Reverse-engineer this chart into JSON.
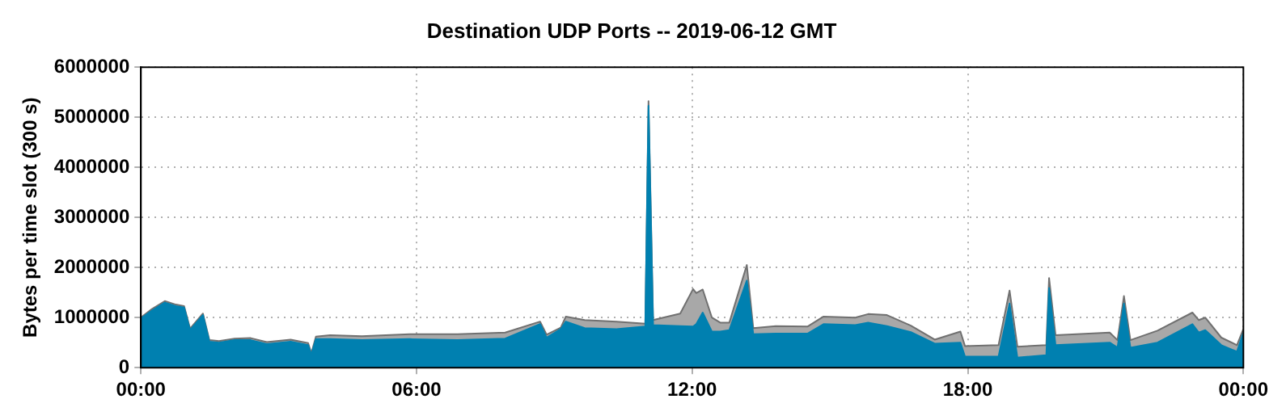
{
  "chart_data": {
    "type": "area",
    "title": "Destination UDP Ports -- 2019-06-12 GMT",
    "ylabel": "Bytes per time slot (300 s)",
    "stacked": true,
    "grid": true,
    "legend": false,
    "x": [
      0,
      0.24,
      0.52,
      0.76,
      0.94,
      1.07,
      1.35,
      1.49,
      1.7,
      2.04,
      2.39,
      2.74,
      3.26,
      3.64,
      3.71,
      3.81,
      4.12,
      4.81,
      5.85,
      6.89,
      7.93,
      8.69,
      8.83,
      9.14,
      9.25,
      9.66,
      10.35,
      10.98,
      11.05,
      11.15,
      11.74,
      12.02,
      12.09,
      12.23,
      12.43,
      12.61,
      12.81,
      13.19,
      13.33,
      13.82,
      14.51,
      14.86,
      15.55,
      15.83,
      16.24,
      16.76,
      17.28,
      17.84,
      17.94,
      18.67,
      18.91,
      19.08,
      19.71,
      19.77,
      19.91,
      21.09,
      21.26,
      21.4,
      21.54,
      22.13,
      22.89,
      23.03,
      23.17,
      23.52,
      23.86,
      24
    ],
    "series": [
      {
        "color": "#0080b0",
        "values": [
          980000,
          1140000,
          1300000,
          1230000,
          1200000,
          750000,
          1050000,
          520000,
          500000,
          550000,
          550000,
          470000,
          520000,
          450000,
          260000,
          570000,
          570000,
          550000,
          570000,
          550000,
          580000,
          870000,
          600000,
          770000,
          920000,
          790000,
          770000,
          820000,
          5230000,
          850000,
          830000,
          820000,
          870000,
          1100000,
          720000,
          720000,
          750000,
          1740000,
          670000,
          680000,
          680000,
          870000,
          850000,
          900000,
          830000,
          710000,
          480000,
          500000,
          220000,
          220000,
          1280000,
          200000,
          250000,
          1590000,
          450000,
          500000,
          400000,
          1280000,
          400000,
          500000,
          870000,
          700000,
          750000,
          450000,
          320000,
          700000
        ]
      },
      {
        "color": "#a8a8a8",
        "values": [
          20000,
          30000,
          30000,
          30000,
          30000,
          30000,
          30000,
          30000,
          30000,
          30000,
          40000,
          40000,
          40000,
          40000,
          30000,
          50000,
          80000,
          80000,
          100000,
          120000,
          120000,
          50000,
          60000,
          30000,
          100000,
          160000,
          150000,
          60000,
          90000,
          100000,
          250000,
          750000,
          620000,
          460000,
          280000,
          180000,
          150000,
          310000,
          120000,
          150000,
          140000,
          150000,
          150000,
          170000,
          220000,
          130000,
          80000,
          220000,
          210000,
          230000,
          260000,
          220000,
          200000,
          200000,
          200000,
          200000,
          150000,
          150000,
          150000,
          240000,
          230000,
          250000,
          250000,
          150000,
          130000,
          70000
        ]
      }
    ],
    "xlim": [
      0,
      24
    ],
    "xticks": [
      {
        "value": 0,
        "label": "00:00"
      },
      {
        "value": 6,
        "label": "06:00"
      },
      {
        "value": 12,
        "label": "12:00"
      },
      {
        "value": 18,
        "label": "18:00"
      },
      {
        "value": 24,
        "label": "00:00"
      }
    ],
    "ylim": [
      0,
      6000000
    ],
    "yticks": [
      0,
      1000000,
      2000000,
      3000000,
      4000000,
      5000000,
      6000000
    ]
  }
}
